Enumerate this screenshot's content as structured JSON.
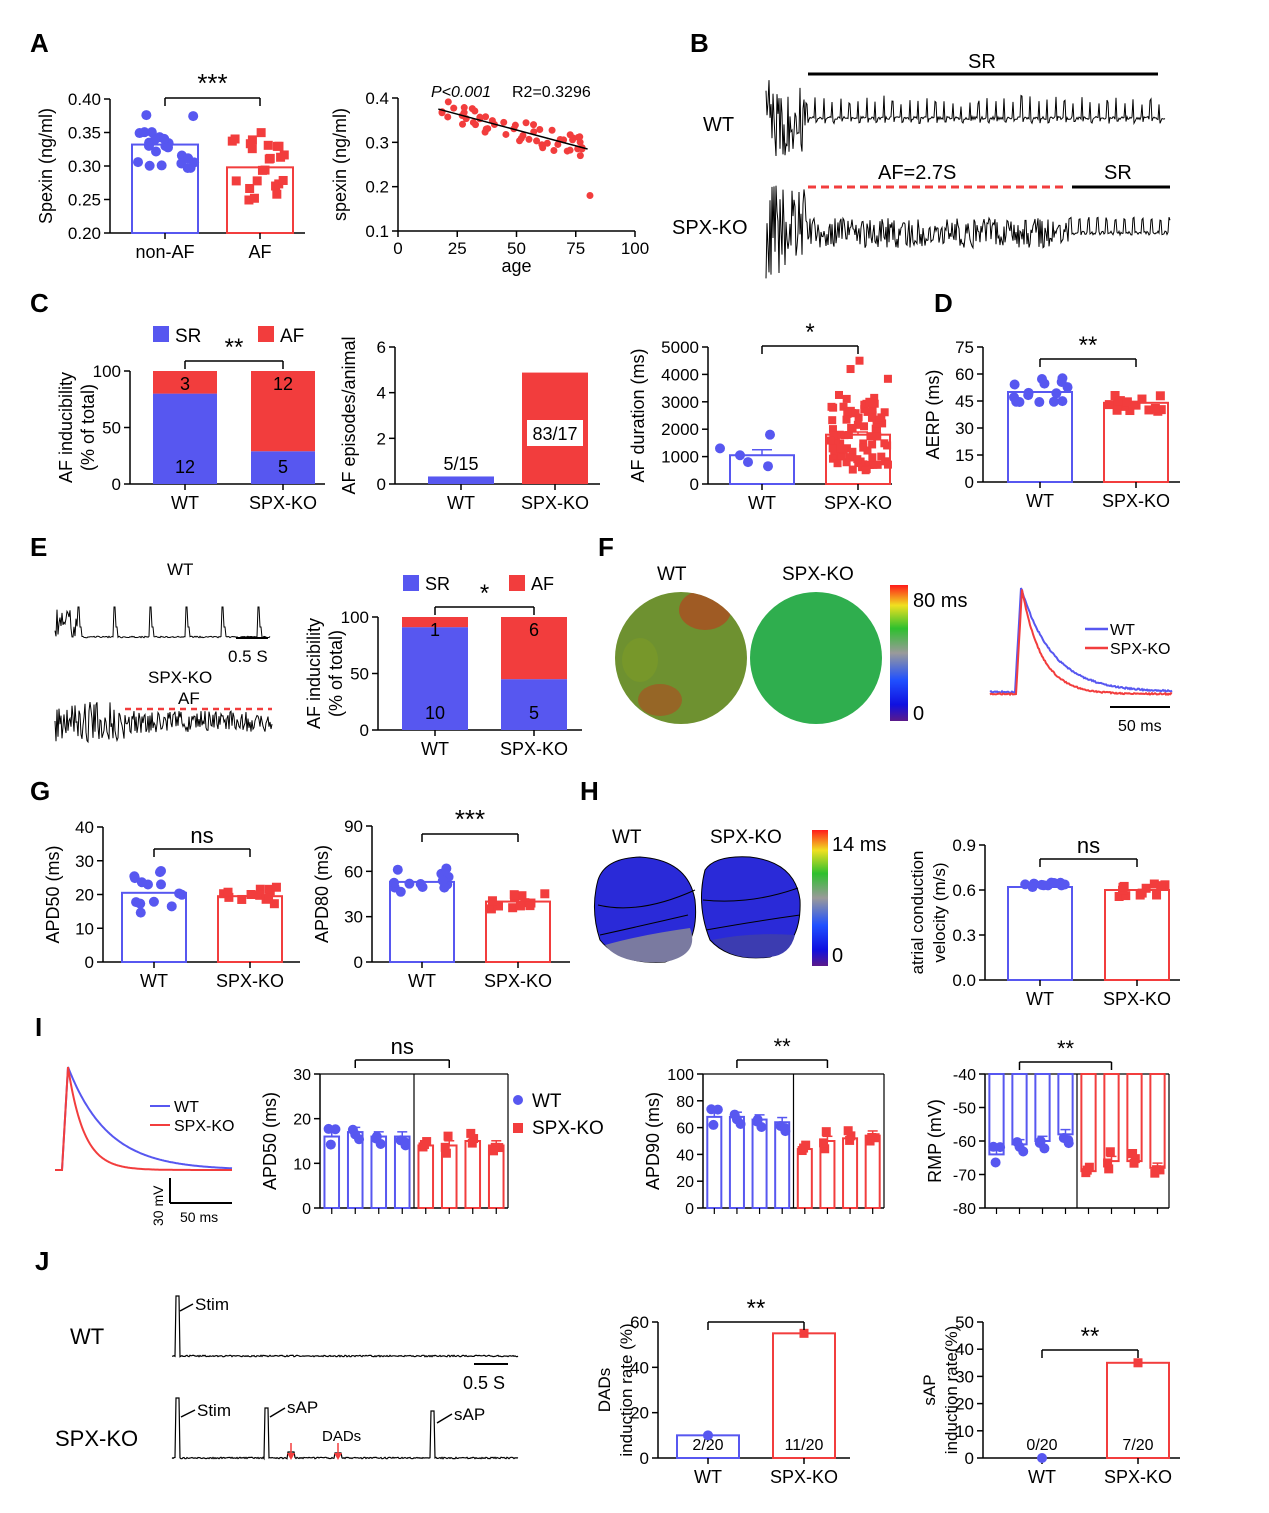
{
  "colors": {
    "wt": "#5757f0",
    "ko": "#f23d3d",
    "black": "#000000"
  },
  "labels": {
    "panel_letters": [
      "A",
      "B",
      "C",
      "D",
      "E",
      "F",
      "G",
      "H",
      "I",
      "J"
    ],
    "wt": "WT",
    "ko": "SPX-KO",
    "sr": "SR",
    "af": "AF",
    "sig3": "***",
    "sig2": "**",
    "sig1": "*",
    "ns": "ns"
  },
  "panel_b": {
    "af_label": "AF=2.7S"
  },
  "panel_e": {
    "scalebar": "0.5 S",
    "af_label": "AF"
  },
  "panel_f": {
    "scale_max": "80 ms",
    "scale_min": "0",
    "scalebar": "50 ms"
  },
  "panel_h": {
    "scale_max": "14 ms",
    "scale_min": "0"
  },
  "panel_i": {
    "scalebar_v": "30 mV",
    "scalebar_h": "50 ms"
  },
  "panel_j": {
    "stim": "Stim",
    "sap": "sAP",
    "dads": "DADs",
    "scalebar": "0.5 S"
  },
  "chart_data": [
    {
      "id": "A1",
      "type": "bar",
      "ylabel": "Spexin (ng/ml)",
      "categories": [
        "non-AF",
        "AF"
      ],
      "values": [
        0.332,
        0.298
      ],
      "ylim": [
        0.2,
        0.4
      ],
      "yticks": [
        "0.20",
        "0.25",
        "0.30",
        "0.35",
        "0.40"
      ],
      "significance": "***"
    },
    {
      "id": "A2",
      "type": "scatter",
      "ylabel": "spexin (ng/ml)",
      "xlabel": "age",
      "xlim": [
        0,
        100
      ],
      "ylim": [
        0.1,
        0.4
      ],
      "xticks": [
        "0",
        "25",
        "50",
        "75",
        "100"
      ],
      "yticks": [
        "0.1",
        "0.2",
        "0.3",
        "0.4"
      ],
      "annotation_p": "P<0.001",
      "annotation_r2": "R2=0.3296",
      "fit": [
        [
          17,
          0.375
        ],
        [
          80,
          0.285
        ]
      ]
    },
    {
      "id": "C1",
      "type": "bar",
      "ylabel": "AF inducibility (% of total)",
      "categories": [
        "WT",
        "SPX-KO"
      ],
      "series": [
        {
          "name": "SR",
          "values": [
            80,
            29
          ],
          "counts": [
            "12",
            "5"
          ]
        },
        {
          "name": "AF",
          "values": [
            20,
            71
          ],
          "counts": [
            "3",
            "12"
          ]
        }
      ],
      "ylim": [
        0,
        100
      ],
      "yticks": [
        "0",
        "50",
        "100"
      ],
      "significance": "**"
    },
    {
      "id": "C2",
      "type": "bar",
      "ylabel": "AF episodes/animal",
      "categories": [
        "WT",
        "SPX-KO"
      ],
      "values": [
        0.33,
        4.88
      ],
      "data_labels": [
        "5/15",
        "83/17"
      ],
      "ylim": [
        0,
        6
      ],
      "yticks": [
        "0",
        "2",
        "4",
        "6"
      ]
    },
    {
      "id": "C3",
      "type": "bar",
      "ylabel": "AF duration (ms)",
      "categories": [
        "WT",
        "SPX-KO"
      ],
      "values": [
        1050,
        1800
      ],
      "ylim": [
        0,
        5000
      ],
      "yticks": [
        "0",
        "1000",
        "2000",
        "3000",
        "4000",
        "5000"
      ],
      "significance": "*"
    },
    {
      "id": "D",
      "type": "bar",
      "ylabel": "AERP (ms)",
      "categories": [
        "WT",
        "SPX-KO"
      ],
      "values": [
        50,
        44
      ],
      "ylim": [
        0,
        75
      ],
      "yticks": [
        "0",
        "15",
        "30",
        "45",
        "60",
        "75"
      ],
      "significance": "**"
    },
    {
      "id": "E",
      "type": "bar",
      "ylabel": "AF inducibility (% of total)",
      "categories": [
        "WT",
        "SPX-KO"
      ],
      "series": [
        {
          "name": "SR",
          "values": [
            91,
            45
          ],
          "counts": [
            "10",
            "5"
          ]
        },
        {
          "name": "AF",
          "values": [
            9,
            55
          ],
          "counts": [
            "1",
            "6"
          ]
        }
      ],
      "ylim": [
        0,
        100
      ],
      "yticks": [
        "0",
        "50",
        "100"
      ],
      "significance": "*"
    },
    {
      "id": "G1",
      "type": "bar",
      "ylabel": "APD50 (ms)",
      "categories": [
        "WT",
        "SPX-KO"
      ],
      "values": [
        20.5,
        19.5
      ],
      "ylim": [
        0,
        40
      ],
      "yticks": [
        "0",
        "10",
        "20",
        "30",
        "40"
      ],
      "significance": "ns"
    },
    {
      "id": "G2",
      "type": "bar",
      "ylabel": "APD80 (ms)",
      "categories": [
        "WT",
        "SPX-KO"
      ],
      "values": [
        53,
        40
      ],
      "ylim": [
        0,
        90
      ],
      "yticks": [
        "0",
        "30",
        "60",
        "90"
      ],
      "significance": "***"
    },
    {
      "id": "H",
      "type": "bar",
      "ylabel": "atrial conduction velocity (m/s)",
      "categories": [
        "WT",
        "SPX-KO"
      ],
      "values": [
        0.62,
        0.6
      ],
      "ylim": [
        0,
        0.9
      ],
      "yticks": [
        "0.0",
        "0.3",
        "0.6",
        "0.9"
      ],
      "significance": "ns"
    },
    {
      "id": "I1",
      "type": "bar",
      "ylabel": "APD50 (ms)",
      "legend": [
        "WT",
        "SPX-KO"
      ],
      "values_wt": [
        16,
        17,
        16,
        16
      ],
      "values_ko": [
        14,
        14,
        15,
        14
      ],
      "ylim": [
        0,
        30
      ],
      "yticks": [
        "0",
        "10",
        "20",
        "30"
      ],
      "significance": "ns"
    },
    {
      "id": "I2",
      "type": "bar",
      "ylabel": "APD90 (ms)",
      "values_wt": [
        68,
        68,
        66,
        64
      ],
      "values_ko": [
        44,
        50,
        52,
        54
      ],
      "ylim": [
        0,
        100
      ],
      "yticks": [
        "0",
        "20",
        "40",
        "60",
        "80",
        "100"
      ],
      "significance": "**"
    },
    {
      "id": "I3",
      "type": "bar",
      "ylabel": "RMP (mV)",
      "values_wt": [
        -64,
        -61,
        -60,
        -58
      ],
      "values_ko": [
        -69,
        -66,
        -66,
        -68
      ],
      "ylim": [
        -80,
        -40
      ],
      "yticks": [
        "-40",
        "-50",
        "-60",
        "-70",
        "-80"
      ],
      "significance": "**"
    },
    {
      "id": "J1",
      "type": "bar",
      "ylabel": "DADs induction rate (%)",
      "categories": [
        "WT",
        "SPX-KO"
      ],
      "values": [
        10,
        55
      ],
      "data_labels": [
        "2/20",
        "11/20"
      ],
      "ylim": [
        0,
        60
      ],
      "yticks": [
        "0",
        "20",
        "40",
        "60"
      ],
      "significance": "**"
    },
    {
      "id": "J2",
      "type": "bar",
      "ylabel": "sAP induction rate(%)",
      "categories": [
        "WT",
        "SPX-KO"
      ],
      "values": [
        0,
        35
      ],
      "data_labels": [
        "0/20",
        "7/20"
      ],
      "ylim": [
        0,
        50
      ],
      "yticks": [
        "0",
        "10",
        "20",
        "30",
        "40",
        "50"
      ],
      "significance": "**"
    }
  ]
}
